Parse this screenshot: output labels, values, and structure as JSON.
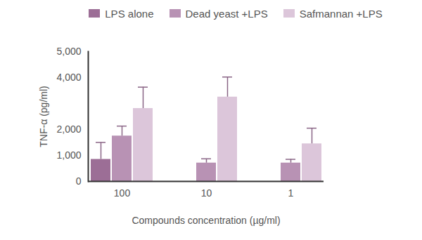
{
  "chart_data": {
    "type": "bar",
    "categories": [
      "100",
      "10",
      "1"
    ],
    "x_label": "Compounds concentration (µg/ml)",
    "y_label": "TNF-α (pg/ml)",
    "series": [
      {
        "name": "LPS alone",
        "color": "#9c6e96",
        "values": [
          850,
          null,
          null
        ],
        "error": [
          650,
          null,
          null
        ]
      },
      {
        "name": "Dead yeast +LPS",
        "color": "#b892b4",
        "values": [
          1750,
          710,
          710
        ],
        "error": [
          380,
          160,
          140
        ]
      },
      {
        "name": "Safmannan +LPS",
        "color": "#dcc6da",
        "values": [
          2810,
          3250,
          1450
        ],
        "error": [
          820,
          770,
          600
        ]
      }
    ],
    "ylim": [
      0,
      5000
    ],
    "yticks": [
      0,
      {
        "value": 1000,
        "label": "1,000"
      },
      {
        "value": 2000,
        "label": "2,000"
      },
      {
        "value": 4000,
        "label": "4,000"
      },
      {
        "value": 5000,
        "label": "5,000"
      }
    ],
    "grid": false,
    "legend": "top"
  }
}
